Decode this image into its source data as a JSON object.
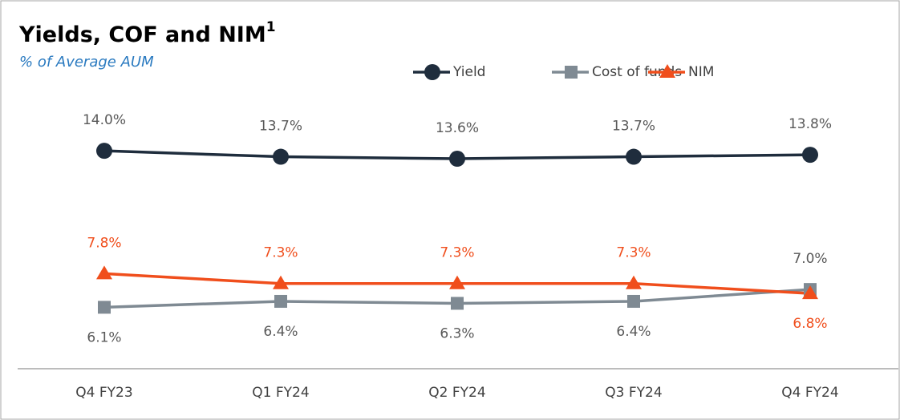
{
  "chart_data": {
    "type": "line",
    "title": "Yields, COF and NIM",
    "title_superscript": "1",
    "subtitle": "% of Average AUM",
    "categories": [
      "Q4 FY23",
      "Q1 FY24",
      "Q2 FY24",
      "Q3 FY24",
      "Q4 FY24"
    ],
    "series": [
      {
        "name": "Yield",
        "color": "#1f2d3d",
        "marker": "circle",
        "values": [
          14.0,
          13.7,
          13.6,
          13.7,
          13.8
        ],
        "value_labels": [
          "14.0%",
          "13.7%",
          "13.6%",
          "13.7%",
          "13.8%"
        ]
      },
      {
        "name": "Cost of funds",
        "color": "#7f8a93",
        "marker": "square",
        "values": [
          6.1,
          6.4,
          6.3,
          6.4,
          7.0
        ],
        "value_labels": [
          "6.1%",
          "6.4%",
          "6.3%",
          "6.4%",
          "7.0%"
        ]
      },
      {
        "name": "NIM",
        "color": "#f04e1c",
        "marker": "triangle",
        "values": [
          7.8,
          7.3,
          7.3,
          7.3,
          6.8
        ],
        "value_labels": [
          "7.8%",
          "7.3%",
          "7.3%",
          "7.3%",
          "6.8%"
        ]
      }
    ],
    "ylim": [
      3,
      17
    ],
    "legend": "top-right"
  }
}
